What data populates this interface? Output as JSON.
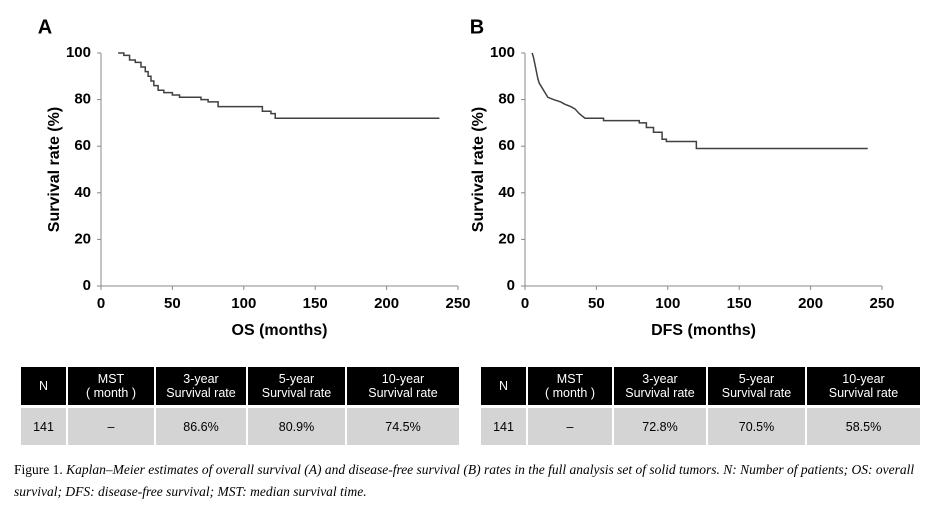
{
  "chart_data": [
    {
      "type": "line",
      "panel": "A",
      "xlabel": "OS (months)",
      "ylabel": "Survival rate (%)",
      "color": "#404040",
      "x": [
        12,
        16,
        16,
        20,
        20,
        24,
        24,
        28,
        28,
        31,
        31,
        33,
        33,
        35,
        35,
        37,
        37,
        40,
        40,
        44,
        44,
        50,
        50,
        55,
        55,
        70,
        70,
        75,
        75,
        82,
        82,
        113,
        113,
        119,
        119,
        122,
        122,
        237
      ],
      "y": [
        100,
        100,
        99,
        99,
        97,
        97,
        96,
        96,
        94,
        94,
        92,
        92,
        90,
        90,
        88,
        88,
        86,
        86,
        84,
        84,
        83,
        83,
        82,
        82,
        81,
        81,
        80,
        80,
        79,
        79,
        77,
        77,
        75,
        75,
        74,
        74,
        72,
        72
      ],
      "xlim": [
        0,
        250
      ],
      "ylim": [
        0,
        100
      ],
      "xticks": [
        0,
        50,
        100,
        150,
        200,
        250
      ],
      "yticks": [
        0,
        20,
        40,
        60,
        80,
        100
      ]
    },
    {
      "type": "line",
      "panel": "B",
      "xlabel": "DFS (months)",
      "ylabel": "Survival rate (%)",
      "color": "#404040",
      "x": [
        5,
        6,
        7,
        8,
        9,
        10,
        12,
        14,
        16,
        20,
        25,
        28,
        32,
        35,
        38,
        40,
        42,
        55,
        55,
        80,
        80,
        85,
        85,
        90,
        90,
        96,
        96,
        99,
        99,
        120,
        120,
        240
      ],
      "y": [
        100,
        98,
        95,
        92,
        89,
        87,
        85,
        83,
        81,
        80,
        79,
        78,
        77,
        76,
        74,
        73,
        72,
        72,
        71,
        71,
        70,
        70,
        68,
        68,
        66,
        66,
        63,
        63,
        62,
        62,
        59,
        59
      ],
      "xlim": [
        0,
        250
      ],
      "ylim": [
        0,
        100
      ],
      "xticks": [
        0,
        50,
        100,
        150,
        200,
        250
      ],
      "yticks": [
        0,
        20,
        40,
        60,
        80,
        100
      ]
    }
  ],
  "tables": [
    {
      "header": [
        [
          "N"
        ],
        [
          "MST",
          "( month )"
        ],
        [
          "3-year",
          "Survival rate"
        ],
        [
          "5-year",
          "Survival rate"
        ],
        [
          "10-year",
          "Survival rate"
        ]
      ],
      "row": [
        "141",
        "–",
        "86.6%",
        "80.9%",
        "74.5%"
      ]
    },
    {
      "header": [
        [
          "N"
        ],
        [
          "MST",
          "( month )"
        ],
        [
          "3-year",
          "Survival rate"
        ],
        [
          "5-year",
          "Survival rate"
        ],
        [
          "10-year",
          "Survival rate"
        ]
      ],
      "row": [
        "141",
        "–",
        "72.8%",
        "70.5%",
        "58.5%"
      ]
    }
  ],
  "caption": {
    "label": "Figure 1.",
    "text": "Kaplan–Meier estimates of overall survival (A) and disease-free survival (B) rates in the full analysis set of solid tumors. N: Number of patients; OS: overall survival; DFS: disease-free survival; MST: median survival time."
  }
}
